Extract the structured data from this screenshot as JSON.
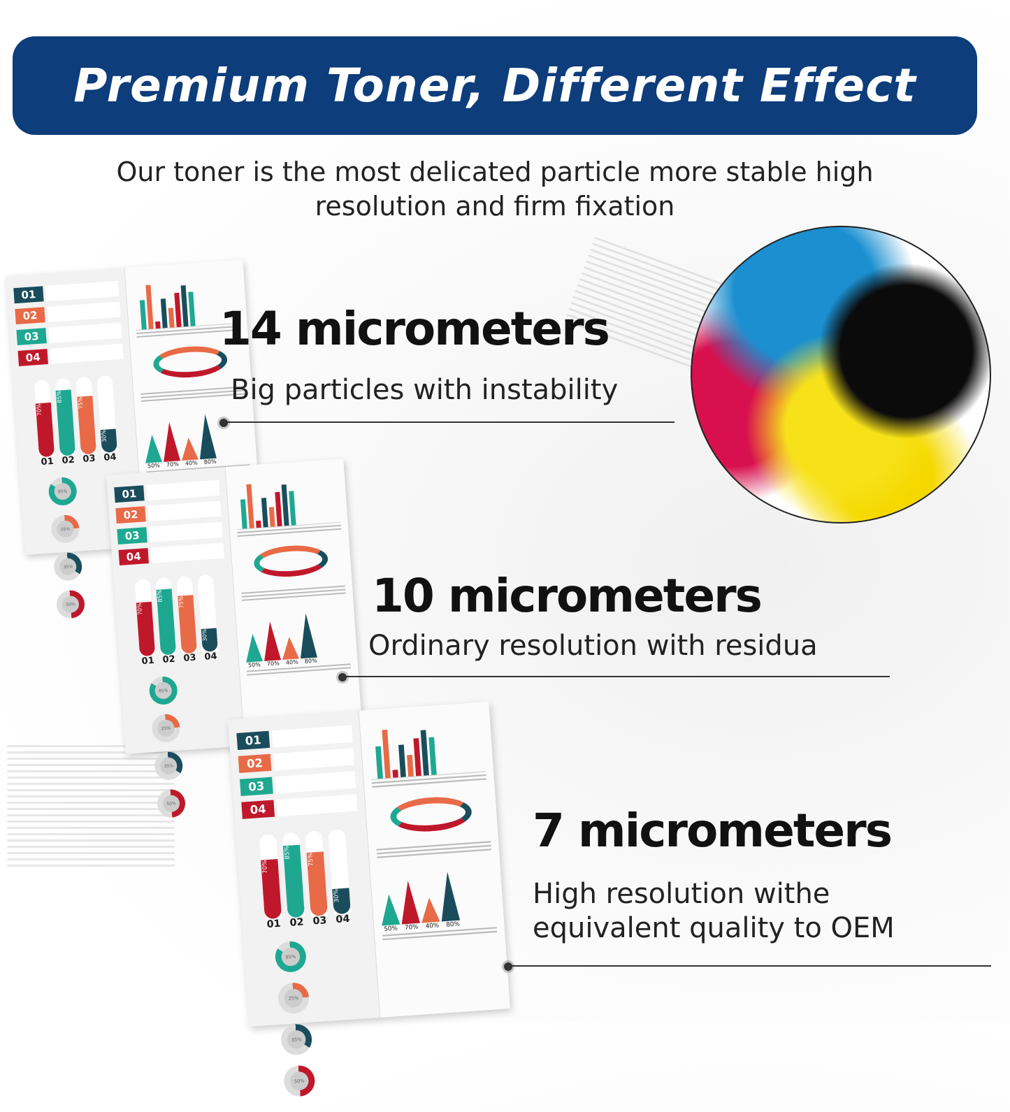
{
  "banner": {
    "title": "Premium Toner, Different Effect",
    "color": "#0d3d7a"
  },
  "subtitle": {
    "line1": "Our toner is the most delicated particle more stable high",
    "line2": "resolution and firm fixation"
  },
  "tiers": [
    {
      "heading": "14 micrometers",
      "desc1": "Big particles with instability"
    },
    {
      "heading": "10 micrometers",
      "desc1": "Ordinary resolution with residua"
    },
    {
      "heading": "7 micrometers",
      "desc1": "High resolution withe",
      "desc2": "equivalent quality to OEM"
    }
  ],
  "document": {
    "tags": [
      {
        "label": "01",
        "color": "#1a4d5c"
      },
      {
        "label": "02",
        "color": "#e86a47"
      },
      {
        "label": "03",
        "color": "#1fa891"
      },
      {
        "label": "04",
        "color": "#c0182b"
      }
    ],
    "bars": [
      {
        "label": "01",
        "value": "70%",
        "pct": 70,
        "color": "#c0182b"
      },
      {
        "label": "02",
        "value": "85%",
        "pct": 85,
        "color": "#1fa891"
      },
      {
        "label": "03",
        "value": "75%",
        "pct": 75,
        "color": "#e86a47"
      },
      {
        "label": "04",
        "value": "30%",
        "pct": 30,
        "color": "#1a4d5c"
      }
    ],
    "rings": [
      {
        "value": "85%",
        "pct": 85,
        "color": "#1fa891"
      },
      {
        "value": "25%",
        "pct": 25,
        "color": "#e86a47"
      },
      {
        "value": "35%",
        "pct": 35,
        "color": "#1a4d5c"
      },
      {
        "value": "50%",
        "pct": 50,
        "color": "#c0182b"
      }
    ],
    "triangles": [
      {
        "label": "01",
        "value": "50%",
        "pct": 50,
        "color": "#1fa891"
      },
      {
        "label": "02",
        "value": "70%",
        "pct": 70,
        "color": "#c0182b"
      },
      {
        "label": "03",
        "value": "40%",
        "pct": 40,
        "color": "#e86a47"
      },
      {
        "label": "04",
        "value": "80%",
        "pct": 80,
        "color": "#1a4d5c"
      }
    ]
  },
  "toner_colors": [
    "#1b8fd0",
    "#0b0b0b",
    "#d8104f",
    "#f7e21a"
  ]
}
